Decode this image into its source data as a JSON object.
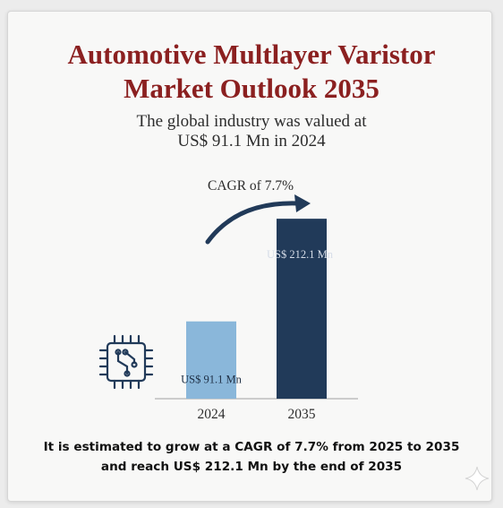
{
  "title_line1": "Automotive Multlayer Varistor",
  "title_line2": "Market Outlook 2035",
  "subtitle_line1": "The global industry was valued at",
  "subtitle_line2": "US$ 91.1 Mn in 2024",
  "footer_line1": "It is estimated to grow at a CAGR of 7.7% from 2025 to 2035",
  "footer_line2": "and reach US$ 212.1 Mn by the end of 2035",
  "icon": "circuit-chip-icon",
  "colors": {
    "title": "#8b2020",
    "bar_2024": "#8ab7da",
    "bar_2035": "#213a59",
    "arrow": "#213a59"
  },
  "chart_data": {
    "type": "bar",
    "categories": [
      "2024",
      "2035"
    ],
    "values": [
      91.1,
      212.1
    ],
    "value_labels": [
      "US$ 91.1 Mn",
      "US$ 212.1 Mn"
    ],
    "annotation": "CAGR of 7.7%",
    "xlabel": "",
    "ylabel": "",
    "grid": false
  }
}
